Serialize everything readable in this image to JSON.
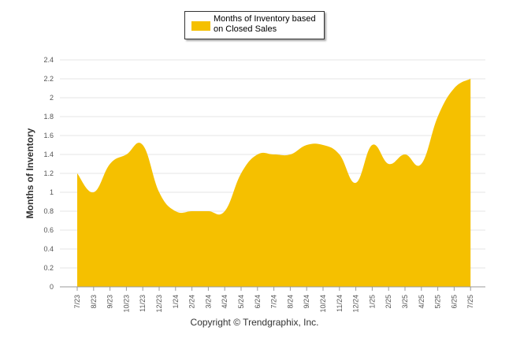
{
  "chart_data": {
    "type": "area",
    "ylabel": "Months of Inventory",
    "xlabel": "",
    "ylim": [
      0,
      2.4
    ],
    "yticks": [
      "0",
      "0.2",
      "0.4",
      "0.6",
      "0.8",
      "1",
      "1.2",
      "1.4",
      "1.6",
      "1.8",
      "2",
      "2.2",
      "2.4"
    ],
    "grid": true,
    "legend_position": "top-center",
    "categories": [
      "7/23",
      "8/23",
      "9/23",
      "10/23",
      "11/23",
      "12/23",
      "1/24",
      "2/24",
      "3/24",
      "4/24",
      "5/24",
      "6/24",
      "7/24",
      "8/24",
      "9/24",
      "10/24",
      "11/24",
      "12/24",
      "1/25",
      "2/25",
      "3/25",
      "4/25",
      "5/25",
      "6/25",
      "7/25"
    ],
    "series": [
      {
        "name": "Months of Inventory based on Closed Sales",
        "color": "#f5c000",
        "values": [
          1.2,
          1.0,
          1.3,
          1.4,
          1.5,
          1.0,
          0.8,
          0.8,
          0.8,
          0.8,
          1.2,
          1.4,
          1.4,
          1.4,
          1.5,
          1.5,
          1.4,
          1.1,
          1.5,
          1.3,
          1.4,
          1.3,
          1.8,
          2.1,
          2.2
        ]
      }
    ]
  },
  "copyright": "Copyright © Trendgraphix, Inc."
}
